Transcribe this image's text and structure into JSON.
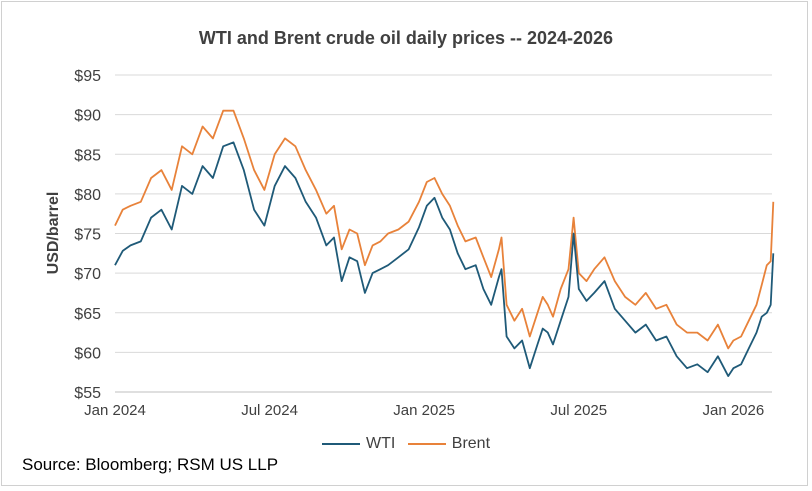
{
  "chart_data": {
    "type": "line",
    "title": "WTI and Brent crude oil daily prices -- 2024-2026",
    "xlabel": "",
    "ylabel": "USD/barrel",
    "ylim": [
      55,
      95
    ],
    "yticks": [
      55,
      60,
      65,
      70,
      75,
      80,
      85,
      90,
      95
    ],
    "ytick_labels": [
      "$55",
      "$60",
      "$65",
      "$70",
      "$75",
      "$80",
      "$85",
      "$90",
      "$95"
    ],
    "xlim": [
      0,
      25.5
    ],
    "xtick_positions": [
      0,
      6,
      12,
      18,
      24
    ],
    "xtick_labels": [
      "Jan 2024",
      "Jul 2024",
      "Jan 2025",
      "Jul 2025",
      "Jan 2026"
    ],
    "grid": "horizontal",
    "legend_position": "bottom",
    "series": [
      {
        "name": "WTI",
        "color": "#1f5a78",
        "x": [
          0,
          0.3,
          0.6,
          1,
          1.4,
          1.8,
          2.2,
          2.6,
          3,
          3.4,
          3.8,
          4.2,
          4.6,
          5,
          5.4,
          5.8,
          6.2,
          6.6,
          7,
          7.4,
          7.8,
          8.2,
          8.5,
          8.8,
          9.1,
          9.4,
          9.7,
          10,
          10.3,
          10.6,
          11,
          11.4,
          11.8,
          12.1,
          12.4,
          12.7,
          13,
          13.3,
          13.6,
          14,
          14.3,
          14.6,
          14.9,
          15,
          15.2,
          15.5,
          15.8,
          16.1,
          16.4,
          16.6,
          16.8,
          17,
          17.3,
          17.6,
          17.8,
          18,
          18.3,
          18.6,
          19,
          19.4,
          19.8,
          20.2,
          20.6,
          21,
          21.4,
          21.8,
          22.2,
          22.6,
          23,
          23.4,
          23.8,
          24,
          24.3,
          24.6,
          24.9,
          25.1,
          25.3,
          25.45,
          25.55
        ],
        "values": [
          71,
          72.8,
          73.5,
          74,
          77,
          78,
          75.5,
          81,
          80,
          83.5,
          82,
          86,
          86.5,
          83,
          78,
          76,
          81,
          83.5,
          82,
          79,
          77,
          73.5,
          74.5,
          69,
          72,
          71.5,
          67.5,
          70,
          70.5,
          71,
          72,
          73,
          75.8,
          78.5,
          79.5,
          77,
          75.5,
          72.5,
          70.5,
          71,
          68,
          66,
          69.5,
          70.5,
          62,
          60.5,
          61.5,
          58,
          61,
          63,
          62.5,
          61,
          64,
          67,
          75,
          68,
          66.5,
          67.5,
          69,
          65.5,
          64,
          62.5,
          63.5,
          61.5,
          62,
          59.5,
          58,
          58.5,
          57.5,
          59.5,
          57,
          58,
          58.5,
          60.5,
          62.5,
          64.5,
          65,
          66,
          72.5
        ]
      },
      {
        "name": "Brent",
        "color": "#e8823a",
        "x": [
          0,
          0.3,
          0.6,
          1,
          1.4,
          1.8,
          2.2,
          2.6,
          3,
          3.4,
          3.8,
          4.2,
          4.6,
          5,
          5.4,
          5.8,
          6.2,
          6.6,
          7,
          7.4,
          7.8,
          8.2,
          8.5,
          8.8,
          9.1,
          9.4,
          9.7,
          10,
          10.3,
          10.6,
          11,
          11.4,
          11.8,
          12.1,
          12.4,
          12.7,
          13,
          13.3,
          13.6,
          14,
          14.3,
          14.6,
          14.9,
          15,
          15.2,
          15.5,
          15.8,
          16.1,
          16.4,
          16.6,
          16.8,
          17,
          17.3,
          17.6,
          17.8,
          18,
          18.3,
          18.6,
          19,
          19.4,
          19.8,
          20.2,
          20.6,
          21,
          21.4,
          21.8,
          22.2,
          22.6,
          23,
          23.4,
          23.8,
          24,
          24.3,
          24.6,
          24.9,
          25.1,
          25.3,
          25.45,
          25.55
        ],
        "values": [
          76,
          78,
          78.5,
          79,
          82,
          83,
          80.5,
          86,
          85,
          88.5,
          87,
          90.5,
          90.5,
          87,
          83,
          80.5,
          85,
          87,
          86,
          83,
          80.5,
          77.5,
          78.5,
          73,
          75.5,
          75,
          71,
          73.5,
          74,
          75,
          75.5,
          76.5,
          79,
          81.5,
          82,
          80,
          78.5,
          76,
          74,
          74.5,
          72,
          69.5,
          73,
          74.5,
          66,
          64,
          65.5,
          62,
          65,
          67,
          66,
          64.5,
          68,
          70.5,
          77,
          70,
          69,
          70.5,
          72,
          69,
          67,
          66,
          67.5,
          65.5,
          66,
          63.5,
          62.5,
          62.5,
          61.5,
          63.5,
          60.5,
          61.5,
          62,
          64,
          66,
          68.5,
          71,
          71.5,
          79
        ]
      }
    ]
  },
  "source": "Source: Bloomberg; RSM US LLP"
}
